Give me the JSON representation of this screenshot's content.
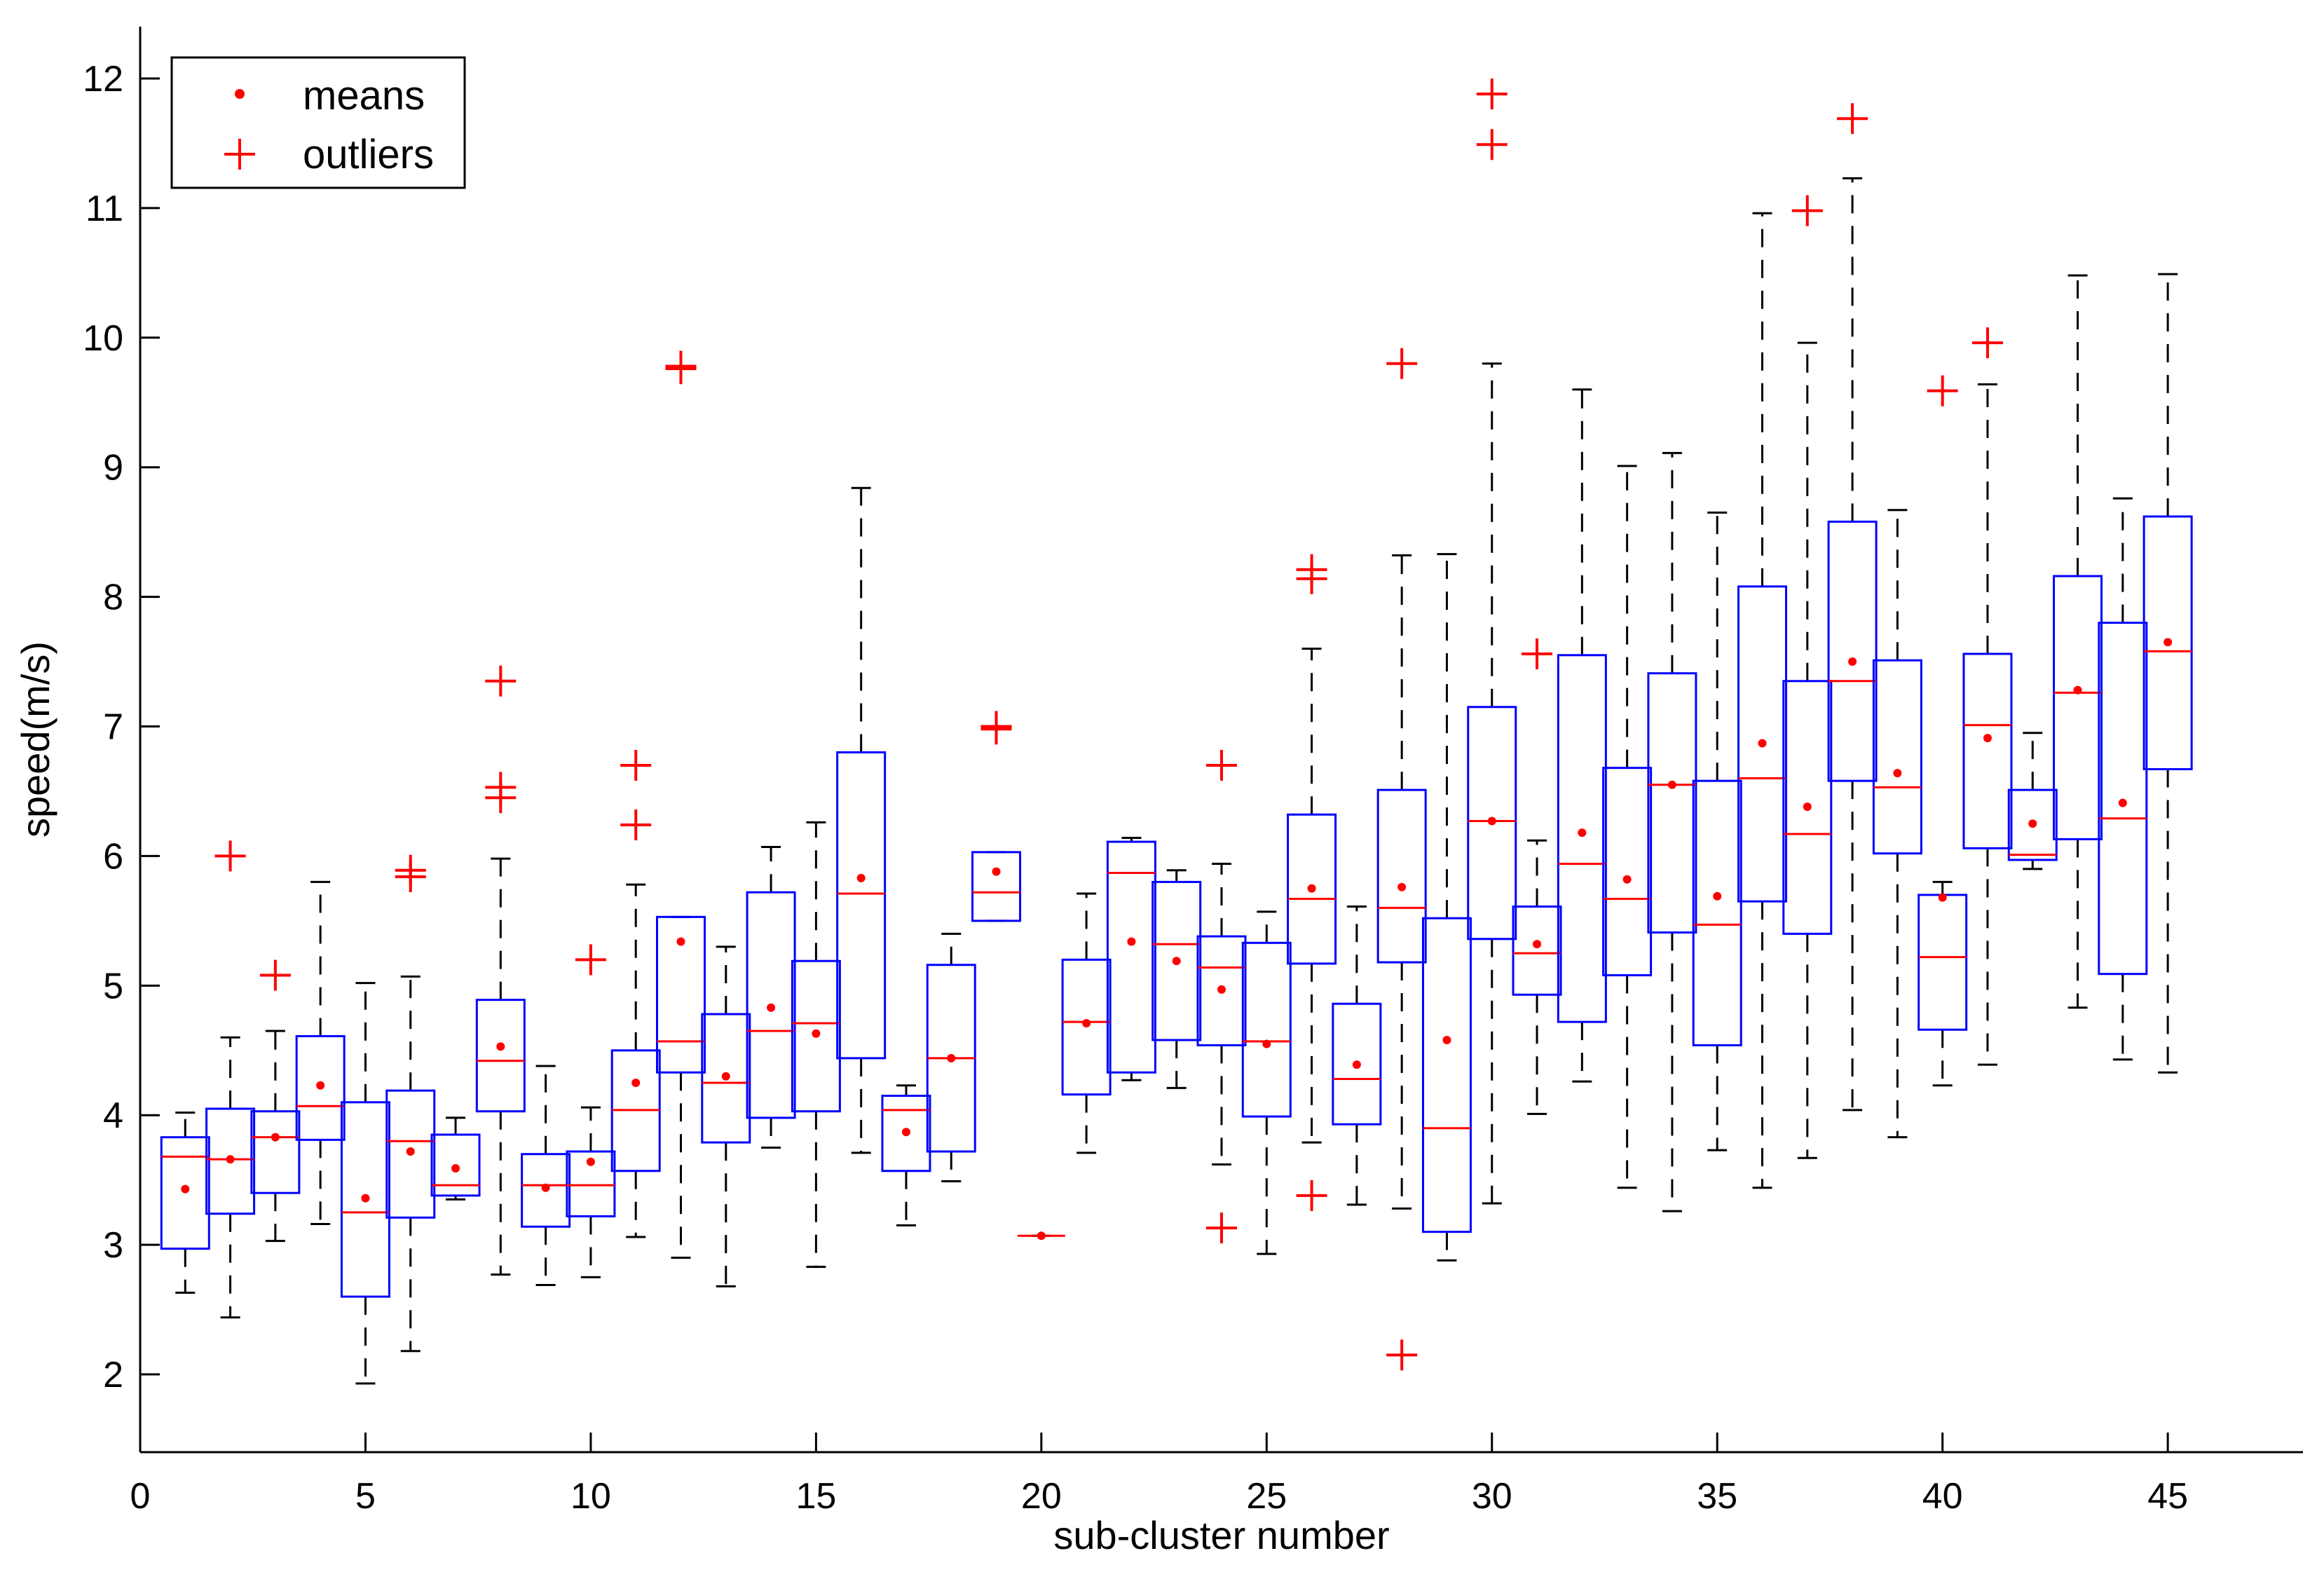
{
  "chart_data": {
    "type": "boxplot",
    "xlabel": "sub-cluster number",
    "ylabel": "speed(m/s)",
    "xlim": [
      0,
      48
    ],
    "ylim": [
      1.4,
      12.4
    ],
    "xticks": [
      0,
      5,
      10,
      15,
      20,
      25,
      30,
      35,
      40,
      45
    ],
    "yticks": [
      2,
      3,
      4,
      5,
      6,
      7,
      8,
      9,
      10,
      11,
      12
    ],
    "grid": false,
    "legend": {
      "placement": "top-left",
      "entries": [
        {
          "label": "means",
          "marker": "dot"
        },
        {
          "label": "outliers",
          "marker": "plus"
        }
      ]
    },
    "colors": {
      "box": "#0000ff",
      "median": "#ff0000",
      "mean": "#ff0000",
      "outlier": "#ff0000",
      "whisker": "#000000"
    },
    "boxes": [
      {
        "x": 1,
        "lw": 2.63,
        "q1": 2.97,
        "med": 3.68,
        "q3": 3.83,
        "uw": 4.02,
        "mean": 3.43,
        "out": []
      },
      {
        "x": 2,
        "lw": 2.44,
        "q1": 3.24,
        "med": 3.66,
        "q3": 4.05,
        "uw": 4.6,
        "mean": 3.66,
        "out": [
          6.0
        ]
      },
      {
        "x": 3,
        "lw": 3.03,
        "q1": 3.4,
        "med": 3.83,
        "q3": 4.03,
        "uw": 4.65,
        "mean": 3.83,
        "out": [
          5.08
        ]
      },
      {
        "x": 4,
        "lw": 3.16,
        "q1": 3.81,
        "med": 4.07,
        "q3": 4.61,
        "uw": 5.8,
        "mean": 4.23,
        "out": []
      },
      {
        "x": 5,
        "lw": 1.93,
        "q1": 2.6,
        "med": 3.25,
        "q3": 4.1,
        "uw": 5.02,
        "mean": 3.36,
        "out": []
      },
      {
        "x": 6,
        "lw": 2.18,
        "q1": 3.21,
        "med": 3.8,
        "q3": 4.19,
        "uw": 5.07,
        "mean": 3.72,
        "out": [
          5.84,
          5.89
        ]
      },
      {
        "x": 7,
        "lw": 3.35,
        "q1": 3.38,
        "med": 3.46,
        "q3": 3.85,
        "uw": 3.98,
        "mean": 3.59,
        "out": []
      },
      {
        "x": 8,
        "lw": 2.77,
        "q1": 4.03,
        "med": 4.42,
        "q3": 4.89,
        "uw": 5.98,
        "mean": 4.53,
        "out": [
          6.45,
          6.53,
          7.35
        ]
      },
      {
        "x": 9,
        "lw": 2.69,
        "q1": 3.14,
        "med": 3.46,
        "q3": 3.7,
        "uw": 4.38,
        "mean": 3.44,
        "out": []
      },
      {
        "x": 10,
        "lw": 2.75,
        "q1": 3.22,
        "med": 3.46,
        "q3": 3.72,
        "uw": 4.06,
        "mean": 3.64,
        "out": [
          5.2
        ]
      },
      {
        "x": 11,
        "lw": 3.06,
        "q1": 3.57,
        "med": 4.04,
        "q3": 4.5,
        "uw": 5.78,
        "mean": 4.25,
        "out": [
          6.24,
          6.7
        ]
      },
      {
        "x": 12,
        "lw": 2.9,
        "q1": 4.33,
        "med": 4.57,
        "q3": 5.53,
        "uw": 5.53,
        "mean": 5.34,
        "out": [
          9.76,
          9.78
        ]
      },
      {
        "x": 13,
        "lw": 2.68,
        "q1": 3.79,
        "med": 4.25,
        "q3": 4.78,
        "uw": 5.3,
        "mean": 4.3,
        "out": []
      },
      {
        "x": 14,
        "lw": 3.75,
        "q1": 3.98,
        "med": 4.65,
        "q3": 5.72,
        "uw": 6.07,
        "mean": 4.83,
        "out": []
      },
      {
        "x": 15,
        "lw": 2.83,
        "q1": 4.03,
        "med": 4.71,
        "q3": 5.19,
        "uw": 6.26,
        "mean": 4.63,
        "out": []
      },
      {
        "x": 16,
        "lw": 3.71,
        "q1": 4.44,
        "med": 5.71,
        "q3": 6.8,
        "uw": 8.84,
        "mean": 5.83,
        "out": []
      },
      {
        "x": 17,
        "lw": 3.15,
        "q1": 3.57,
        "med": 4.04,
        "q3": 4.15,
        "uw": 4.23,
        "mean": 3.87,
        "out": []
      },
      {
        "x": 18,
        "lw": 3.49,
        "q1": 3.72,
        "med": 4.44,
        "q3": 5.16,
        "uw": 5.4,
        "mean": 4.44,
        "out": []
      },
      {
        "x": 19,
        "lw": 5.5,
        "q1": 5.5,
        "med": 5.72,
        "q3": 6.03,
        "uw": 6.03,
        "mean": 5.88,
        "out": [
          6.98,
          7.0
        ]
      },
      {
        "x": 20,
        "lw": 3.07,
        "q1": 3.07,
        "med": 3.07,
        "q3": 3.07,
        "uw": 3.07,
        "mean": 3.07,
        "out": []
      },
      {
        "x": 21,
        "lw": 3.71,
        "q1": 4.16,
        "med": 4.72,
        "q3": 5.2,
        "uw": 5.71,
        "mean": 4.71,
        "out": []
      },
      {
        "x": 22,
        "lw": 4.27,
        "q1": 4.33,
        "med": 5.87,
        "q3": 6.11,
        "uw": 6.14,
        "mean": 5.34,
        "out": []
      },
      {
        "x": 23,
        "lw": 4.21,
        "q1": 4.58,
        "med": 5.32,
        "q3": 5.8,
        "uw": 5.89,
        "mean": 5.19,
        "out": []
      },
      {
        "x": 24,
        "lw": 3.62,
        "q1": 4.54,
        "med": 5.14,
        "q3": 5.38,
        "uw": 5.94,
        "mean": 4.97,
        "out": [
          3.13,
          6.7
        ]
      },
      {
        "x": 25,
        "lw": 2.93,
        "q1": 3.99,
        "med": 4.57,
        "q3": 5.33,
        "uw": 5.57,
        "mean": 4.55,
        "out": []
      },
      {
        "x": 26,
        "lw": 3.79,
        "q1": 5.17,
        "med": 5.67,
        "q3": 6.32,
        "uw": 7.6,
        "mean": 5.75,
        "out": [
          3.38,
          8.14,
          8.21
        ]
      },
      {
        "x": 27,
        "lw": 3.31,
        "q1": 3.93,
        "med": 4.28,
        "q3": 4.86,
        "uw": 5.61,
        "mean": 4.39,
        "out": []
      },
      {
        "x": 28,
        "lw": 3.28,
        "q1": 5.18,
        "med": 5.6,
        "q3": 6.51,
        "uw": 8.32,
        "mean": 5.76,
        "out": [
          2.15,
          9.8
        ]
      },
      {
        "x": 29,
        "lw": 2.88,
        "q1": 3.1,
        "med": 3.9,
        "q3": 5.52,
        "uw": 8.33,
        "mean": 4.58,
        "out": []
      },
      {
        "x": 30,
        "lw": 3.32,
        "q1": 5.36,
        "med": 6.27,
        "q3": 7.15,
        "uw": 9.8,
        "mean": 6.27,
        "out": [
          11.49,
          11.88
        ]
      },
      {
        "x": 31,
        "lw": 4.01,
        "q1": 4.93,
        "med": 5.25,
        "q3": 5.61,
        "uw": 6.12,
        "mean": 5.32,
        "out": [
          7.56
        ]
      },
      {
        "x": 32,
        "lw": 4.26,
        "q1": 4.72,
        "med": 5.94,
        "q3": 7.55,
        "uw": 9.6,
        "mean": 6.18,
        "out": []
      },
      {
        "x": 33,
        "lw": 3.44,
        "q1": 5.08,
        "med": 5.67,
        "q3": 6.68,
        "uw": 9.01,
        "mean": 5.82,
        "out": []
      },
      {
        "x": 34,
        "lw": 3.26,
        "q1": 5.41,
        "med": 6.55,
        "q3": 7.41,
        "uw": 9.11,
        "mean": 6.55,
        "out": []
      },
      {
        "x": 35,
        "lw": 3.73,
        "q1": 4.54,
        "med": 5.47,
        "q3": 6.58,
        "uw": 8.65,
        "mean": 5.69,
        "out": []
      },
      {
        "x": 36,
        "lw": 3.44,
        "q1": 5.65,
        "med": 6.6,
        "q3": 8.08,
        "uw": 10.96,
        "mean": 6.87,
        "out": []
      },
      {
        "x": 37,
        "lw": 3.67,
        "q1": 5.4,
        "med": 6.17,
        "q3": 7.35,
        "uw": 9.96,
        "mean": 6.38,
        "out": [
          10.98
        ]
      },
      {
        "x": 38,
        "lw": 4.04,
        "q1": 6.58,
        "med": 7.35,
        "q3": 8.58,
        "uw": 11.23,
        "mean": 7.5,
        "out": [
          11.69
        ]
      },
      {
        "x": 39,
        "lw": 3.83,
        "q1": 6.02,
        "med": 6.53,
        "q3": 7.51,
        "uw": 8.67,
        "mean": 6.64,
        "out": []
      },
      {
        "x": 40,
        "lw": 4.23,
        "q1": 4.66,
        "med": 5.22,
        "q3": 5.7,
        "uw": 5.8,
        "mean": 5.68,
        "out": [
          9.59
        ]
      },
      {
        "x": 41,
        "lw": 4.39,
        "q1": 6.06,
        "med": 7.01,
        "q3": 7.56,
        "uw": 9.64,
        "mean": 6.91,
        "out": [
          9.96
        ]
      },
      {
        "x": 42,
        "lw": 5.9,
        "q1": 5.97,
        "med": 6.01,
        "q3": 6.51,
        "uw": 6.95,
        "mean": 6.25,
        "out": []
      },
      {
        "x": 43,
        "lw": 4.83,
        "q1": 6.13,
        "med": 7.26,
        "q3": 8.16,
        "uw": 10.48,
        "mean": 7.28,
        "out": []
      },
      {
        "x": 44,
        "lw": 4.43,
        "q1": 5.09,
        "med": 6.29,
        "q3": 7.8,
        "uw": 8.76,
        "mean": 6.41,
        "out": []
      },
      {
        "x": 45,
        "lw": 4.33,
        "q1": 6.67,
        "med": 7.58,
        "q3": 8.62,
        "uw": 10.49,
        "mean": 7.65,
        "out": []
      }
    ]
  }
}
